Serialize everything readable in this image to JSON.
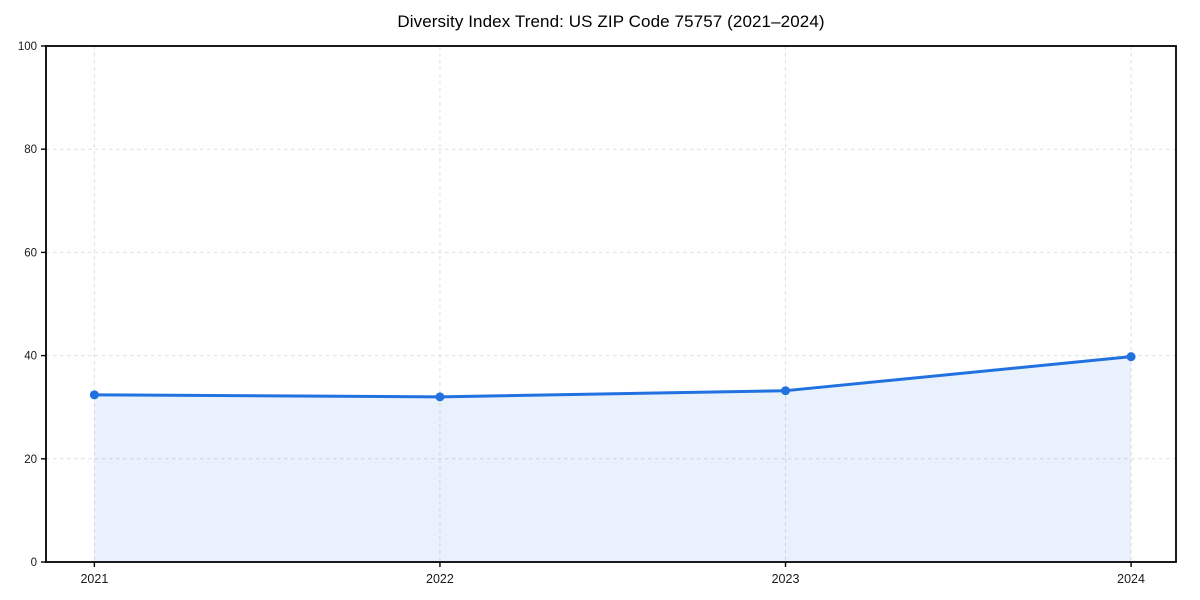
{
  "chart_data": {
    "type": "area",
    "title": "Diversity Index Trend: US ZIP Code 75757 (2021–2024)",
    "categories": [
      "2021",
      "2022",
      "2023",
      "2024"
    ],
    "x": [
      2021,
      2022,
      2023,
      2024
    ],
    "series": [
      {
        "name": "Diversity Index",
        "values": [
          32.4,
          32.0,
          33.2,
          39.8
        ]
      }
    ],
    "xlabel": "",
    "ylabel": "",
    "xlim": [
      2020.86,
      2024.13
    ],
    "ylim": [
      0,
      100
    ],
    "yticks": [
      0,
      20,
      40,
      60,
      80,
      100
    ],
    "ytick_labels": [
      "0",
      "20",
      "40",
      "60",
      "80",
      "100"
    ],
    "xtick_labels": [
      "2021",
      "2022",
      "2023",
      "2024"
    ],
    "grid": true,
    "grid_style": "dashed",
    "legend": false,
    "colors": {
      "line": "#2172e0",
      "marker": "#2172e0",
      "fill": "#2172e0",
      "fill_opacity": 0.1,
      "grid": "#dfdfdf",
      "spine": "#000000",
      "tick_label": "#1a1a1a",
      "title": "#000000",
      "background": "#ffffff"
    }
  }
}
